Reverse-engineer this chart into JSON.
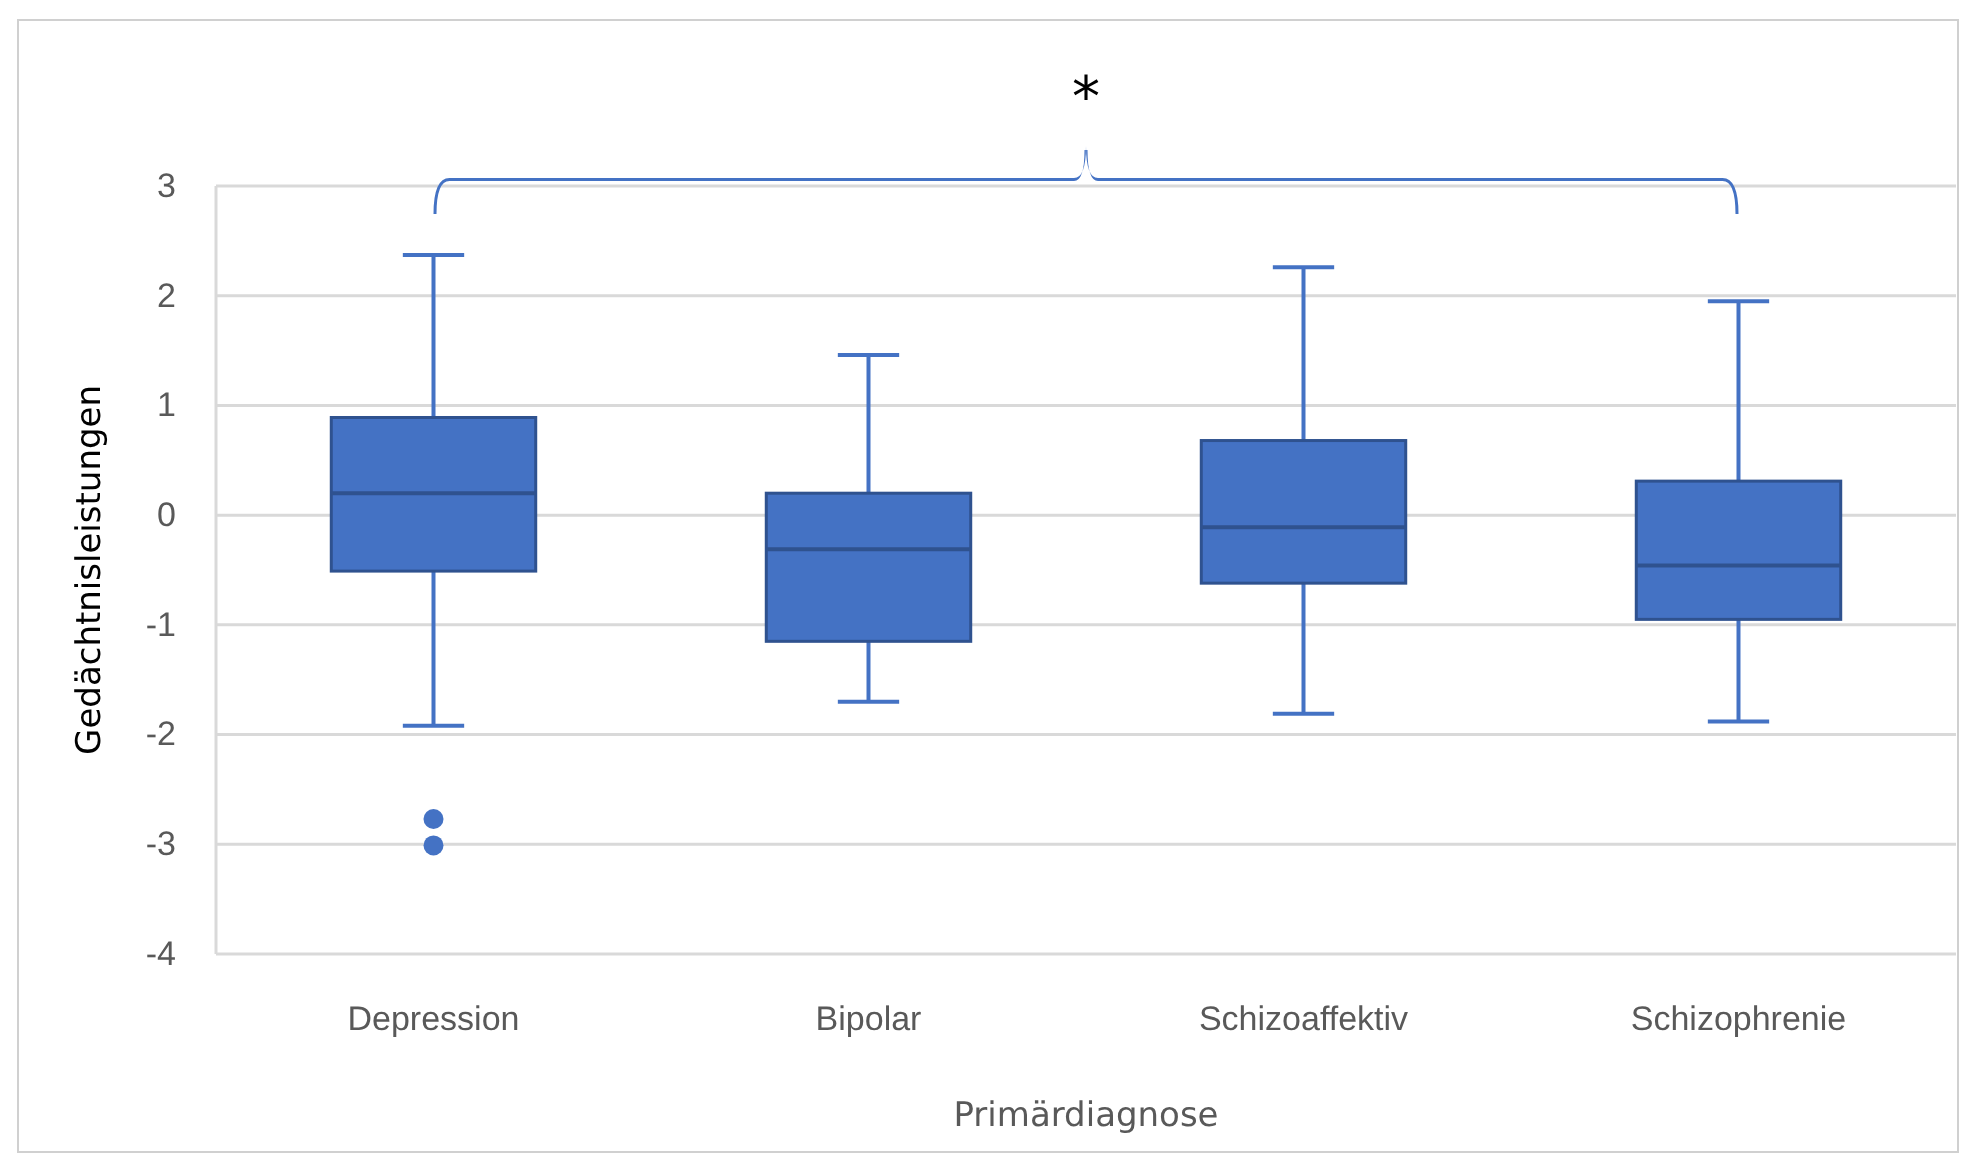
{
  "chart_data": {
    "type": "box",
    "xlabel": "Primärdiagnose",
    "ylabel": "Gedächtnisleistungen",
    "categories": [
      "Depression",
      "Bipolar",
      "Schizoaffektiv",
      "Schizophrenie"
    ],
    "boxes": [
      {
        "low": -1.92,
        "q1": -0.51,
        "median": 0.2,
        "q3": 0.89,
        "high": 2.37,
        "outliers": [
          -2.77,
          -3.01
        ]
      },
      {
        "low": -1.7,
        "q1": -1.15,
        "median": -0.31,
        "q3": 0.2,
        "high": 1.46
      },
      {
        "low": -1.81,
        "q1": -0.62,
        "median": -0.11,
        "q3": 0.68,
        "high": 2.26
      },
      {
        "low": -1.88,
        "q1": -0.95,
        "median": -0.46,
        "q3": 0.31,
        "high": 1.95
      }
    ],
    "color": "#4472c4",
    "ylim": [
      -4,
      3
    ],
    "yticks": [
      -4,
      -3,
      -2,
      -1,
      0,
      1,
      2,
      3
    ],
    "grid": "y",
    "annotations": [
      "*"
    ]
  }
}
